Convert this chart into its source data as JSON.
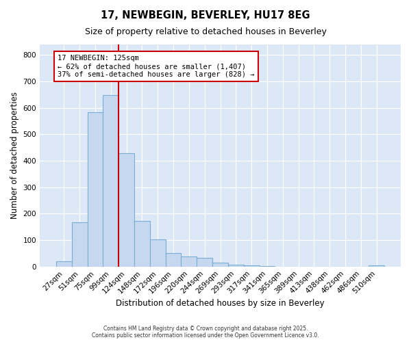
{
  "title1": "17, NEWBEGIN, BEVERLEY, HU17 8EG",
  "title2": "Size of property relative to detached houses in Beverley",
  "xlabel": "Distribution of detached houses by size in Beverley",
  "ylabel": "Number of detached properties",
  "bin_labels": [
    "27sqm",
    "51sqm",
    "75sqm",
    "99sqm",
    "124sqm",
    "148sqm",
    "172sqm",
    "196sqm",
    "220sqm",
    "244sqm",
    "269sqm",
    "293sqm",
    "317sqm",
    "341sqm",
    "365sqm",
    "389sqm",
    "413sqm",
    "438sqm",
    "462sqm",
    "486sqm",
    "510sqm"
  ],
  "bar_values": [
    20,
    167,
    583,
    648,
    428,
    172,
    103,
    52,
    38,
    32,
    15,
    8,
    5,
    1,
    0,
    0,
    0,
    0,
    0,
    0,
    5
  ],
  "bar_color": "#c5d8f0",
  "bar_edge_color": "#7aadd4",
  "property_line_color": "#cc0000",
  "annotation_title": "17 NEWBEGIN: 125sqm",
  "annotation_line2": "← 62% of detached houses are smaller (1,407)",
  "annotation_line3": "37% of semi-detached houses are larger (828) →",
  "annotation_box_color": "#cc0000",
  "ylim": [
    0,
    840
  ],
  "yticks": [
    0,
    100,
    200,
    300,
    400,
    500,
    600,
    700,
    800
  ],
  "footer1": "Contains HM Land Registry data © Crown copyright and database right 2025.",
  "footer2": "Contains public sector information licensed under the Open Government Licence v3.0.",
  "bg_color": "#ffffff",
  "plot_bg_color": "#dce8f5"
}
